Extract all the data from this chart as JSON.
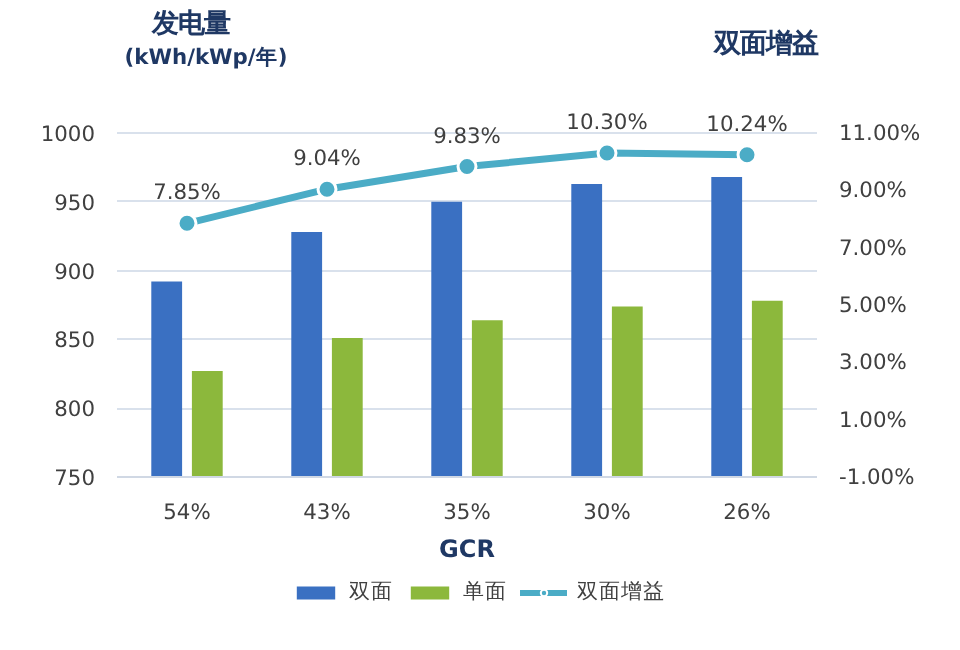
{
  "chart_data": {
    "type": "bar",
    "ylabel": "发电量\n(kWh/kWp/年)",
    "y2label": "双面增益",
    "xlabel": "GCR",
    "categories": [
      "54%",
      "43%",
      "35%",
      "30%",
      "26%"
    ],
    "series": [
      {
        "name": "双面",
        "color": "#3a70c2",
        "values": [
          892,
          928,
          950,
          963,
          968
        ]
      },
      {
        "name": "单面",
        "color": "#8cb83c",
        "values": [
          827,
          851,
          864,
          874,
          878
        ]
      },
      {
        "name": "双面增益",
        "type": "line",
        "axis": "y2",
        "color": "#4bacc6",
        "marker": "circle",
        "values": [
          7.85,
          9.04,
          9.83,
          10.3,
          10.24
        ],
        "value_labels": [
          "7.85%",
          "9.04%",
          "9.83%",
          "10.30%",
          "10.24%"
        ]
      }
    ],
    "ylim": [
      750,
      1000
    ],
    "yticks": [
      750,
      800,
      850,
      900,
      950,
      1000
    ],
    "y2lim": [
      -1,
      11
    ],
    "y2ticks": [
      {
        "value": -1,
        "label": "-1.00%"
      },
      {
        "value": 1,
        "label": "1.00%"
      },
      {
        "value": 3,
        "label": "3.00%"
      },
      {
        "value": 5,
        "label": "5.00%"
      },
      {
        "value": 7,
        "label": "7.00%"
      },
      {
        "value": 9,
        "label": "9.00%"
      },
      {
        "value": 11,
        "label": "11.00%"
      }
    ],
    "grid": "y",
    "legend": "bottom"
  }
}
